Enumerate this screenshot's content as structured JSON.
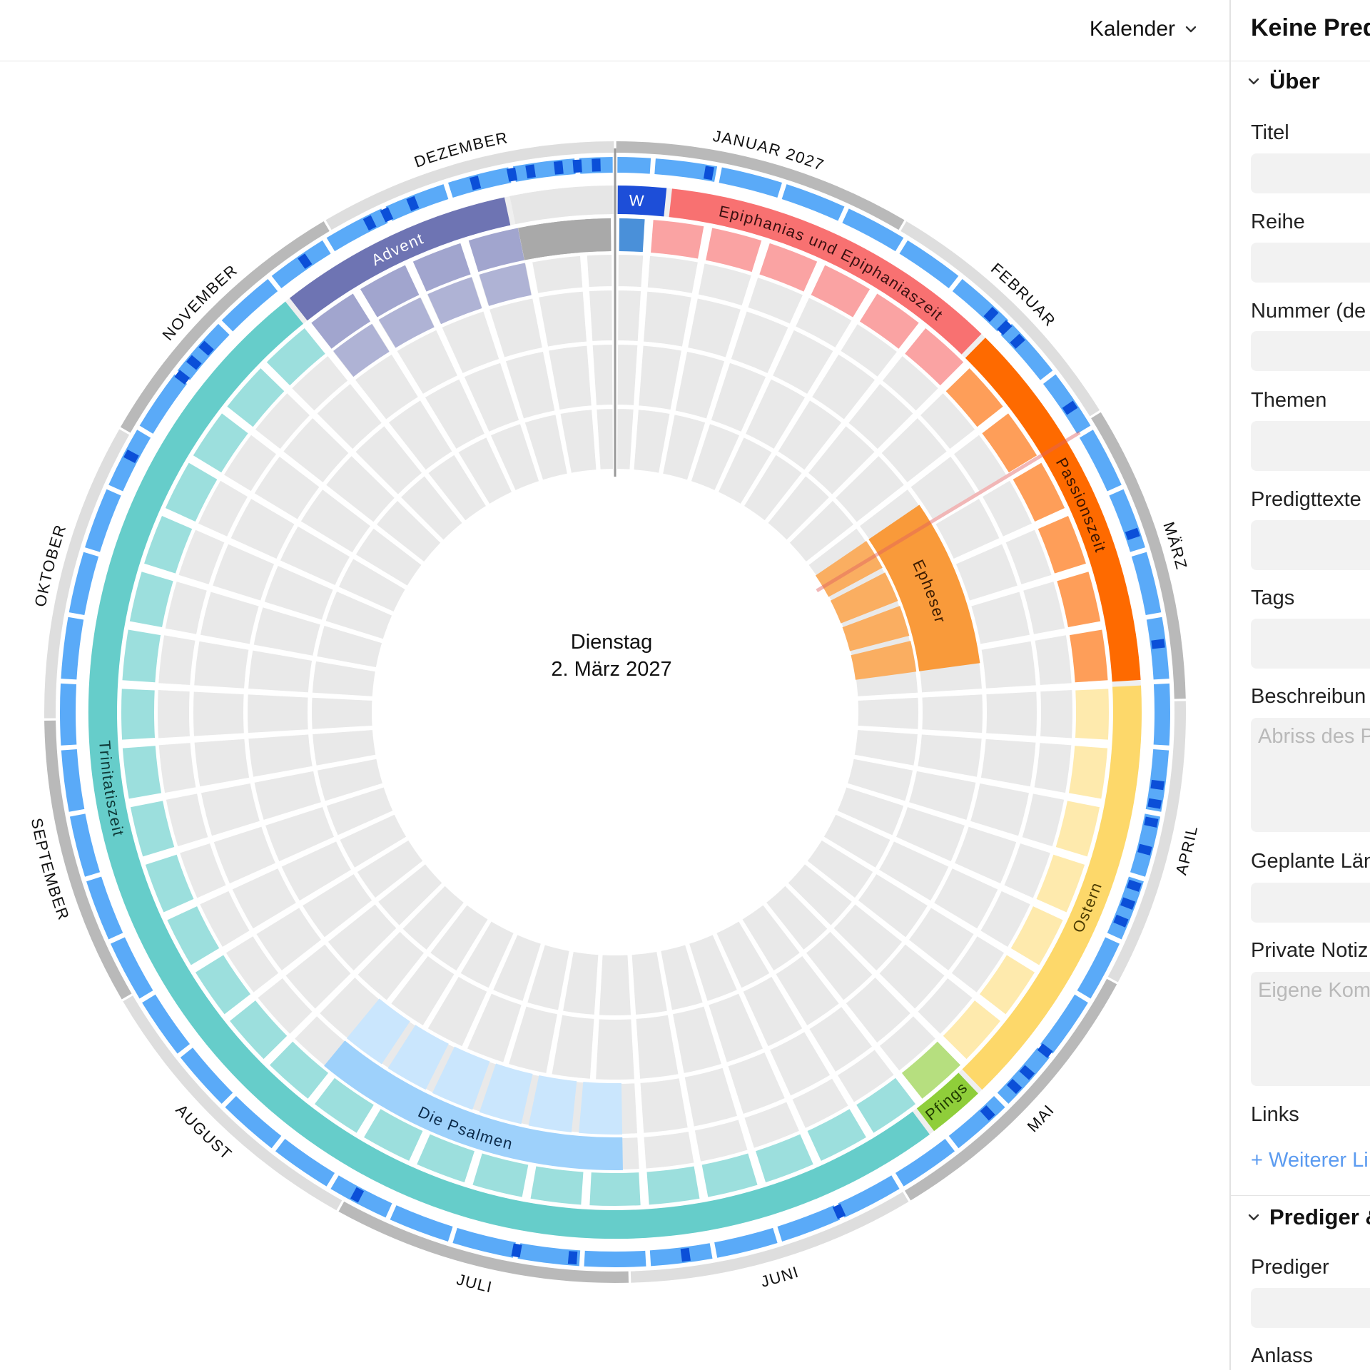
{
  "topbar": {
    "view_selector": "Kalender"
  },
  "center": {
    "weekday": "Dienstag",
    "date": "2. März 2027"
  },
  "months": [
    "JANUAR 2027",
    "FEBRUAR",
    "MÄRZ",
    "APRIL",
    "MAI",
    "JUNI",
    "JULI",
    "AUGUST",
    "SEPTEMBER",
    "OKTOBER",
    "NOVEMBER",
    "DEZEMBER"
  ],
  "seasons": {
    "epiphanias": "Epiphanias und Epiphaniaszeit",
    "passion": "Passionszeit",
    "ostern": "Ostern",
    "pfingsten": "Pfings",
    "trinitatis": "Trinitatiszeit",
    "advent": "Advent",
    "weihnachten": "W"
  },
  "series": {
    "epheser": "Epheser",
    "psalmen": "Die Psalmen"
  },
  "colors": {
    "epiphanias": "#f87171",
    "passion": "#fe6a00",
    "ostern": "#fdd86a",
    "pfingsten": "#8fce3a",
    "trinitatis": "#66cdca",
    "advent": "#6e74b3",
    "weihnachten": "#1d4ed8",
    "week_blue": "#5aaaf8",
    "week_dark": "#0b4fd8",
    "epheser": "#f99a3a",
    "psalmen": "#9ed1fb"
  },
  "panel": {
    "title": "Keine Pred",
    "section_about": "Über",
    "fields": {
      "titel": "Titel",
      "reihe": "Reihe",
      "nummer": "Nummer (de",
      "themen": "Themen",
      "predigttexte": "Predigttexte",
      "tags": "Tags",
      "beschreibung": "Beschreibun",
      "beschreibung_ph": "Abriss des P",
      "laenge": "Geplante Län",
      "notiz": "Private Notiz",
      "notiz_ph": "Eigene Kom",
      "links": "Links",
      "add_link": "+ Weiterer Li",
      "prediger": "Prediger",
      "anlass": "Anlass"
    },
    "section_prediger": "Prediger &"
  }
}
